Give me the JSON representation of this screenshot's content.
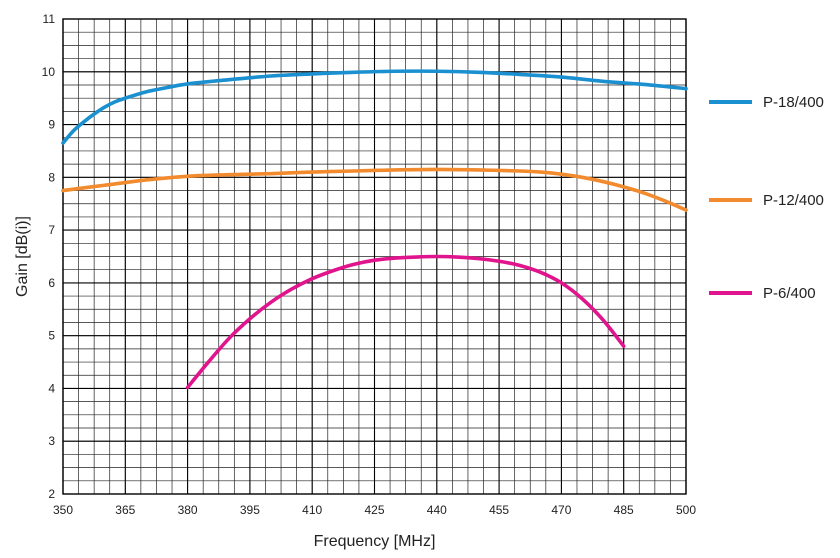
{
  "chart_data": {
    "type": "line",
    "xlabel": "Frequency  [MHz]",
    "ylabel": "Gain  [dB(i)]",
    "xlim": [
      350,
      500
    ],
    "ylim": [
      2,
      11
    ],
    "x_ticks": [
      350,
      365,
      380,
      395,
      410,
      425,
      440,
      455,
      470,
      485,
      500
    ],
    "y_ticks": [
      2,
      3,
      4,
      5,
      6,
      7,
      8,
      9,
      10,
      11
    ],
    "grid": true,
    "minor_grid": {
      "x_divisions_per_major": 4,
      "y_divisions_per_major": 4
    },
    "legend_position": "right",
    "series": [
      {
        "name": "P-18/400",
        "color": "#1a90d0",
        "x": [
          350,
          352.5,
          355,
          357.5,
          360,
          362.5,
          365,
          370,
          375,
          380,
          390,
          400,
          410,
          420,
          430,
          440,
          450,
          460,
          470,
          480,
          490,
          500
        ],
        "y": [
          8.65,
          8.88,
          9.05,
          9.2,
          9.33,
          9.43,
          9.5,
          9.62,
          9.7,
          9.77,
          9.85,
          9.92,
          9.96,
          9.99,
          10.01,
          10.01,
          9.99,
          9.95,
          9.9,
          9.82,
          9.76,
          9.68
        ]
      },
      {
        "name": "P-12/400",
        "color": "#f28a2e",
        "x": [
          350,
          360,
          370,
          380,
          390,
          400,
          410,
          420,
          430,
          440,
          450,
          460,
          465,
          470,
          475,
          480,
          485,
          490,
          495,
          500
        ],
        "y": [
          7.75,
          7.85,
          7.95,
          8.02,
          8.05,
          8.07,
          8.1,
          8.12,
          8.14,
          8.15,
          8.14,
          8.12,
          8.1,
          8.06,
          8.0,
          7.92,
          7.82,
          7.7,
          7.55,
          7.38
        ]
      },
      {
        "name": "P-6/400",
        "color": "#e0148c",
        "x": [
          380,
          385,
          390,
          395,
          400,
          405,
          410,
          415,
          420,
          425,
          430,
          435,
          440,
          445,
          450,
          455,
          460,
          465,
          470,
          475,
          480,
          485
        ],
        "y": [
          4.02,
          4.5,
          4.95,
          5.32,
          5.63,
          5.88,
          6.08,
          6.23,
          6.35,
          6.43,
          6.47,
          6.49,
          6.5,
          6.49,
          6.46,
          6.41,
          6.33,
          6.2,
          6.0,
          5.7,
          5.3,
          4.8
        ]
      }
    ]
  }
}
